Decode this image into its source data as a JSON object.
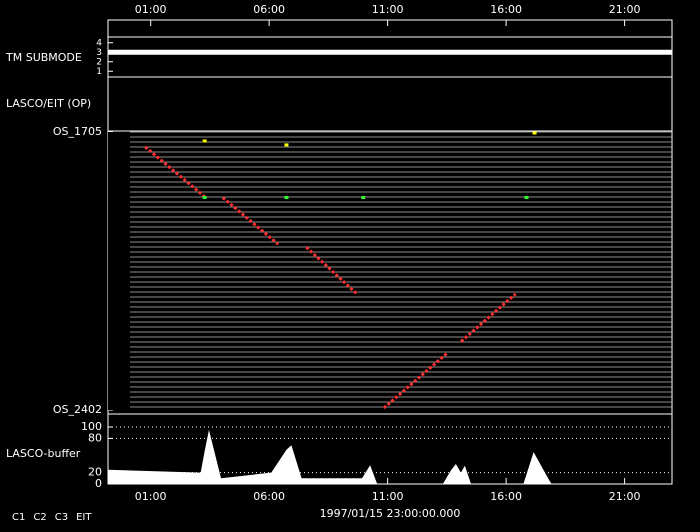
{
  "x_axis": {
    "xlim": [
      0.2,
      24
    ],
    "xticks": [
      {
        "value": 2,
        "label": "01:00"
      },
      {
        "value": 7,
        "label": "06:00"
      },
      {
        "value": 12,
        "label": "11:00"
      },
      {
        "value": 17,
        "label": "16:00"
      },
      {
        "value": 22,
        "label": "21:00"
      }
    ],
    "start_label": "1997/01/15 23:00:00.000"
  },
  "legend": [
    {
      "name": "C1",
      "color": "#ff3030"
    },
    {
      "name": "C2",
      "color": "#30ff30"
    },
    {
      "name": "C3",
      "color": "#ffffff"
    },
    {
      "name": "EIT",
      "color": "#ffffff"
    }
  ],
  "chart_data": [
    {
      "type": "line",
      "label": "TM SUBMODE",
      "ylim": [
        0.5,
        4.5
      ],
      "yticks": [
        1,
        2,
        3,
        4
      ],
      "series": [
        {
          "color": "#ffffff",
          "x": [
            0.2,
            24
          ],
          "values": [
            3,
            3
          ]
        }
      ]
    },
    {
      "type": "empty",
      "label": "LASCO/EIT (OP)"
    },
    {
      "type": "timeline",
      "ylim": [
        56,
        0
      ],
      "yticks": [
        {
          "value": 0,
          "label": "OS_1705"
        },
        {
          "value": 56,
          "label": "OS_2402"
        }
      ],
      "series": [
        {
          "style": "streak",
          "color": "#ff3030",
          "x": [
            1.77,
            4.32
          ],
          "values": [
            3,
            13.2
          ]
        },
        {
          "style": "streak",
          "color": "#ff3030",
          "x": [
            5.04,
            7.38
          ],
          "values": [
            13.2,
            22.6
          ]
        },
        {
          "style": "streak",
          "color": "#ff3030",
          "x": [
            8.57,
            10.7
          ],
          "values": [
            23.2,
            32.6
          ]
        },
        {
          "style": "streak",
          "color": "#ff3030",
          "x": [
            11.84,
            14.5
          ],
          "values": [
            55.6,
            44.6
          ]
        },
        {
          "style": "streak",
          "color": "#ff3030",
          "x": [
            15.1,
            17.4
          ],
          "values": [
            42.2,
            32.6
          ]
        },
        {
          "style": "points",
          "color": "#ffff00",
          "x": [
            4.28,
            7.73,
            18.2
          ],
          "values": [
            1.8,
            2.6,
            0.2
          ]
        },
        {
          "style": "points",
          "color": "#30ff30",
          "x": [
            4.28,
            7.73,
            10.97,
            17.86
          ],
          "values": [
            13.2,
            13.2,
            13.2,
            13.2
          ]
        }
      ]
    },
    {
      "type": "area",
      "label": "LASCO-buffer",
      "ylim": [
        0,
        100
      ],
      "yticks": [
        0,
        20,
        80,
        100
      ],
      "grid": true,
      "color": "#ffffff",
      "x": [
        0.2,
        4.11,
        4.29,
        4.46,
        4.97,
        7.09,
        7.73,
        7.94,
        8.37,
        10.92,
        11.26,
        11.56,
        14.33,
        14.67,
        14.88,
        15.09,
        15.26,
        15.52,
        17.73,
        18.16,
        18.8,
        18.92,
        24
      ],
      "values": [
        25,
        20,
        60,
        95,
        10,
        20,
        60,
        68,
        10,
        10,
        33,
        0,
        0,
        24,
        35,
        20,
        32,
        0,
        0,
        56,
        8,
        0,
        0
      ]
    }
  ]
}
